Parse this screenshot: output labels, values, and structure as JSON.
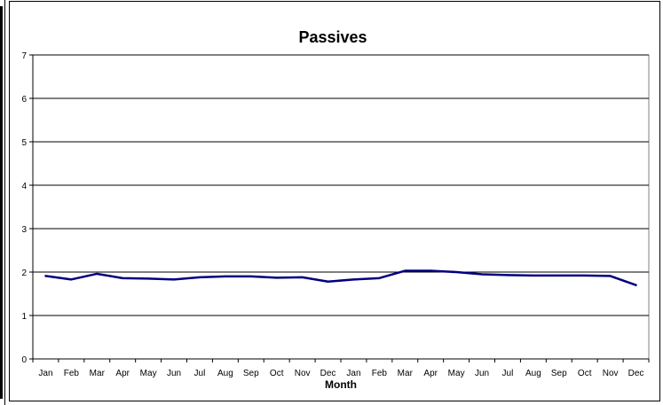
{
  "chart_data": {
    "type": "line",
    "title": "Passives",
    "xlabel": "Month",
    "ylabel": "",
    "ylim": [
      0,
      7
    ],
    "yticks": [
      0,
      1,
      2,
      3,
      4,
      5,
      6,
      7
    ],
    "grid": "horizontal",
    "legend": "none",
    "categories": [
      "Jan",
      "Feb",
      "Mar",
      "Apr",
      "May",
      "Jun",
      "Jul",
      "Aug",
      "Sep",
      "Oct",
      "Nov",
      "Dec",
      "Jan",
      "Feb",
      "Mar",
      "Apr",
      "May",
      "Jun",
      "Jul",
      "Aug",
      "Sep",
      "Oct",
      "Nov",
      "Dec"
    ],
    "series": [
      {
        "values": [
          1.91,
          1.83,
          1.96,
          1.86,
          1.85,
          1.83,
          1.88,
          1.9,
          1.9,
          1.87,
          1.88,
          1.78,
          1.83,
          1.86,
          2.03,
          2.03,
          2.0,
          1.95,
          1.93,
          1.92,
          1.92,
          1.92,
          1.91,
          1.7
        ],
        "color": "#000080"
      }
    ]
  }
}
